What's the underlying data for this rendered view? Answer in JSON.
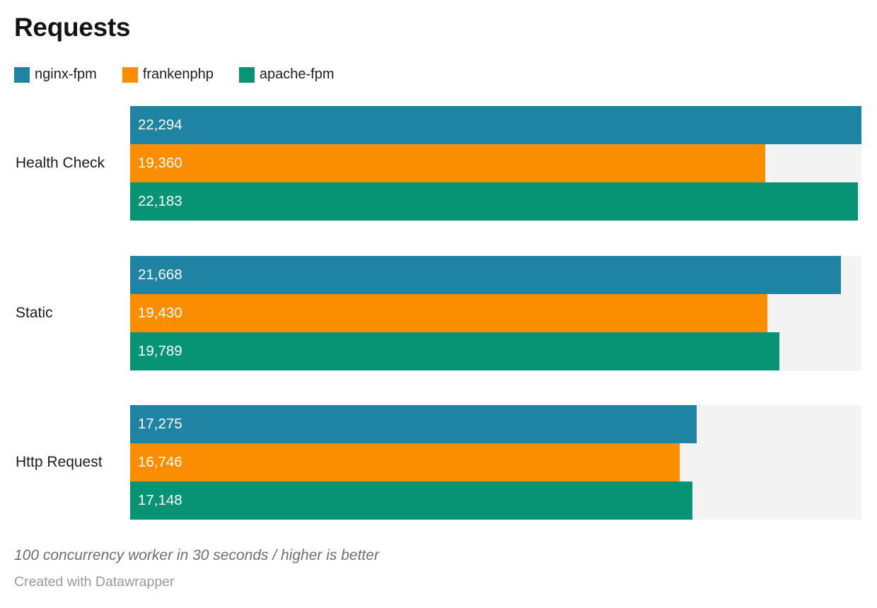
{
  "chart_data": {
    "type": "bar",
    "orientation": "horizontal",
    "title": "Requests",
    "categories": [
      "Health Check",
      "Static",
      "Http Request"
    ],
    "series": [
      {
        "name": "nginx-fpm",
        "color": "#1f83a3",
        "values": [
          22294,
          21668,
          17275
        ],
        "labels": [
          "22,294",
          "21,668",
          "17,275"
        ]
      },
      {
        "name": "frankenphp",
        "color": "#fa8e00",
        "values": [
          19360,
          19430,
          16746
        ],
        "labels": [
          "19,360",
          "19,430",
          "16,746"
        ]
      },
      {
        "name": "apache-fpm",
        "color": "#079475",
        "values": [
          22183,
          19789,
          17148
        ],
        "labels": [
          "22,183",
          "19,789",
          "17,148"
        ]
      }
    ],
    "xlim": [
      0,
      22294
    ],
    "grid": false,
    "legend_position": "top",
    "track_color": "#f3f3f3",
    "value_label_color": "#ffffff",
    "note": "100 concurrency worker in 30 seconds / higher is better"
  },
  "footer": {
    "attribution": "Created with Datawrapper"
  }
}
